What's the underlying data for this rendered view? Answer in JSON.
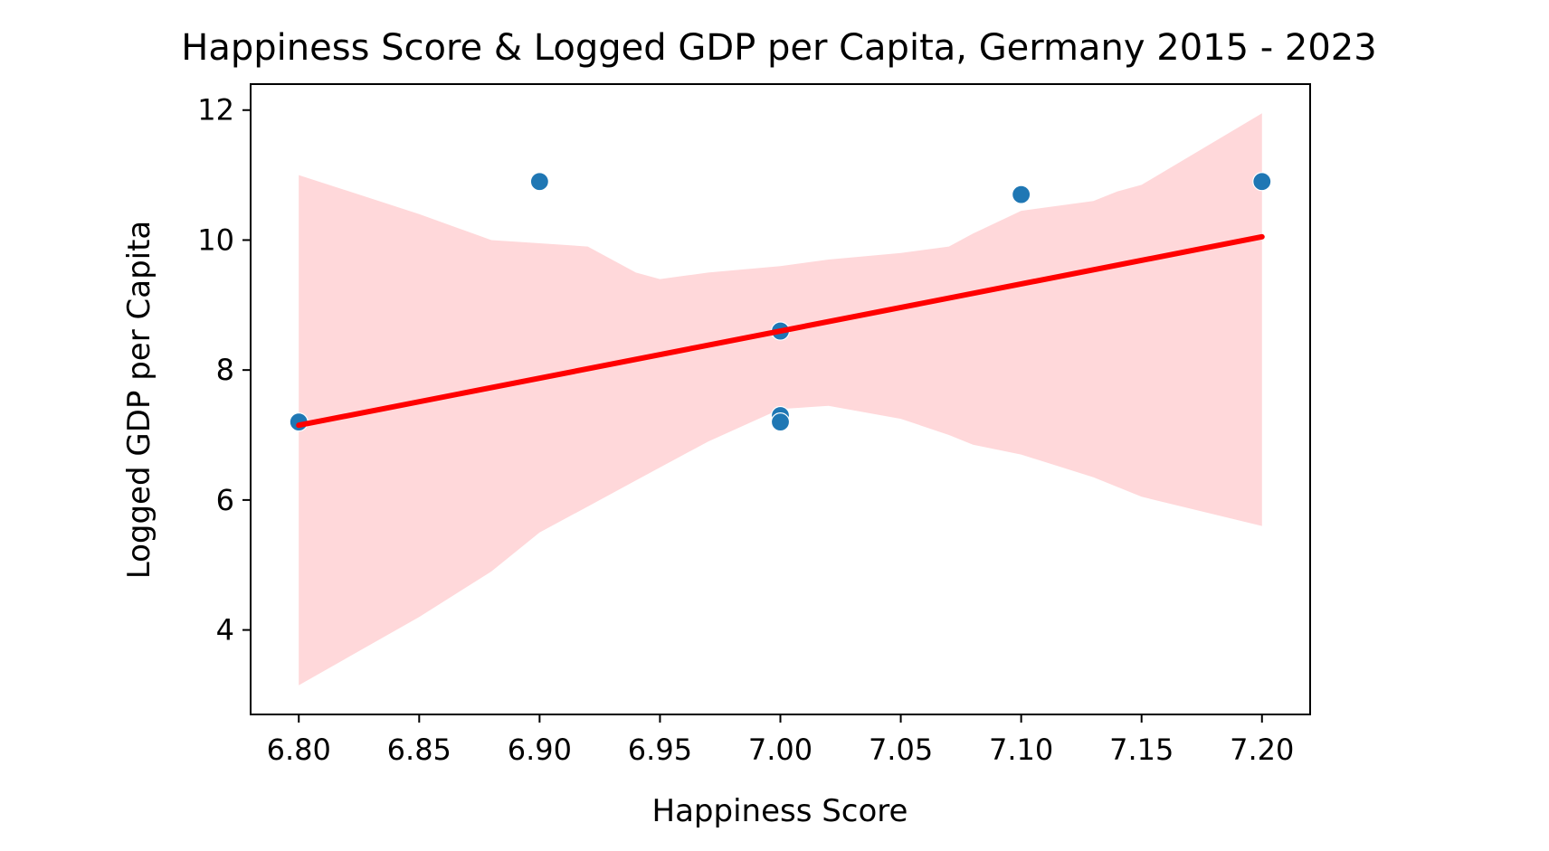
{
  "chart_data": {
    "type": "scatter",
    "title": "Happiness Score & Logged GDP per Capita, Germany 2015 - 2023",
    "xlabel": "Happiness Score",
    "ylabel": "Logged GDP per Capita",
    "xlim": [
      6.78,
      7.22
    ],
    "ylim": [
      2.7,
      12.4
    ],
    "xticks": [
      6.8,
      6.85,
      6.9,
      6.95,
      7.0,
      7.05,
      7.1,
      7.15,
      7.2
    ],
    "xtick_labels": [
      "6.80",
      "6.85",
      "6.90",
      "6.95",
      "7.00",
      "7.05",
      "7.10",
      "7.15",
      "7.20"
    ],
    "yticks": [
      4,
      6,
      8,
      10,
      12
    ],
    "ytick_labels": [
      "4",
      "6",
      "8",
      "10",
      "12"
    ],
    "grid": false,
    "points": [
      {
        "x": 6.8,
        "y": 7.2
      },
      {
        "x": 6.9,
        "y": 10.9
      },
      {
        "x": 7.0,
        "y": 8.6
      },
      {
        "x": 7.0,
        "y": 7.3
      },
      {
        "x": 7.0,
        "y": 7.2
      },
      {
        "x": 7.1,
        "y": 10.7
      },
      {
        "x": 7.2,
        "y": 10.9
      }
    ],
    "regression_line": {
      "x": [
        6.8,
        7.2
      ],
      "y": [
        7.15,
        10.05
      ]
    },
    "confidence_band": {
      "x": [
        6.8,
        6.85,
        6.88,
        6.9,
        6.92,
        6.94,
        6.95,
        6.97,
        7.0,
        7.02,
        7.05,
        7.07,
        7.08,
        7.1,
        7.13,
        7.14,
        7.15,
        7.2
      ],
      "upper": [
        11.0,
        10.4,
        10.0,
        9.95,
        9.9,
        9.5,
        9.4,
        9.5,
        9.6,
        9.7,
        9.8,
        9.9,
        10.1,
        10.45,
        10.6,
        10.75,
        10.85,
        11.95
      ],
      "lower": [
        3.15,
        4.2,
        4.9,
        5.5,
        5.9,
        6.3,
        6.5,
        6.9,
        7.4,
        7.45,
        7.25,
        7.0,
        6.85,
        6.7,
        6.35,
        6.2,
        6.05,
        5.6
      ]
    },
    "colors": {
      "points": "#1f77b4",
      "line": "#ff0000",
      "band": "#ffd8da"
    }
  }
}
